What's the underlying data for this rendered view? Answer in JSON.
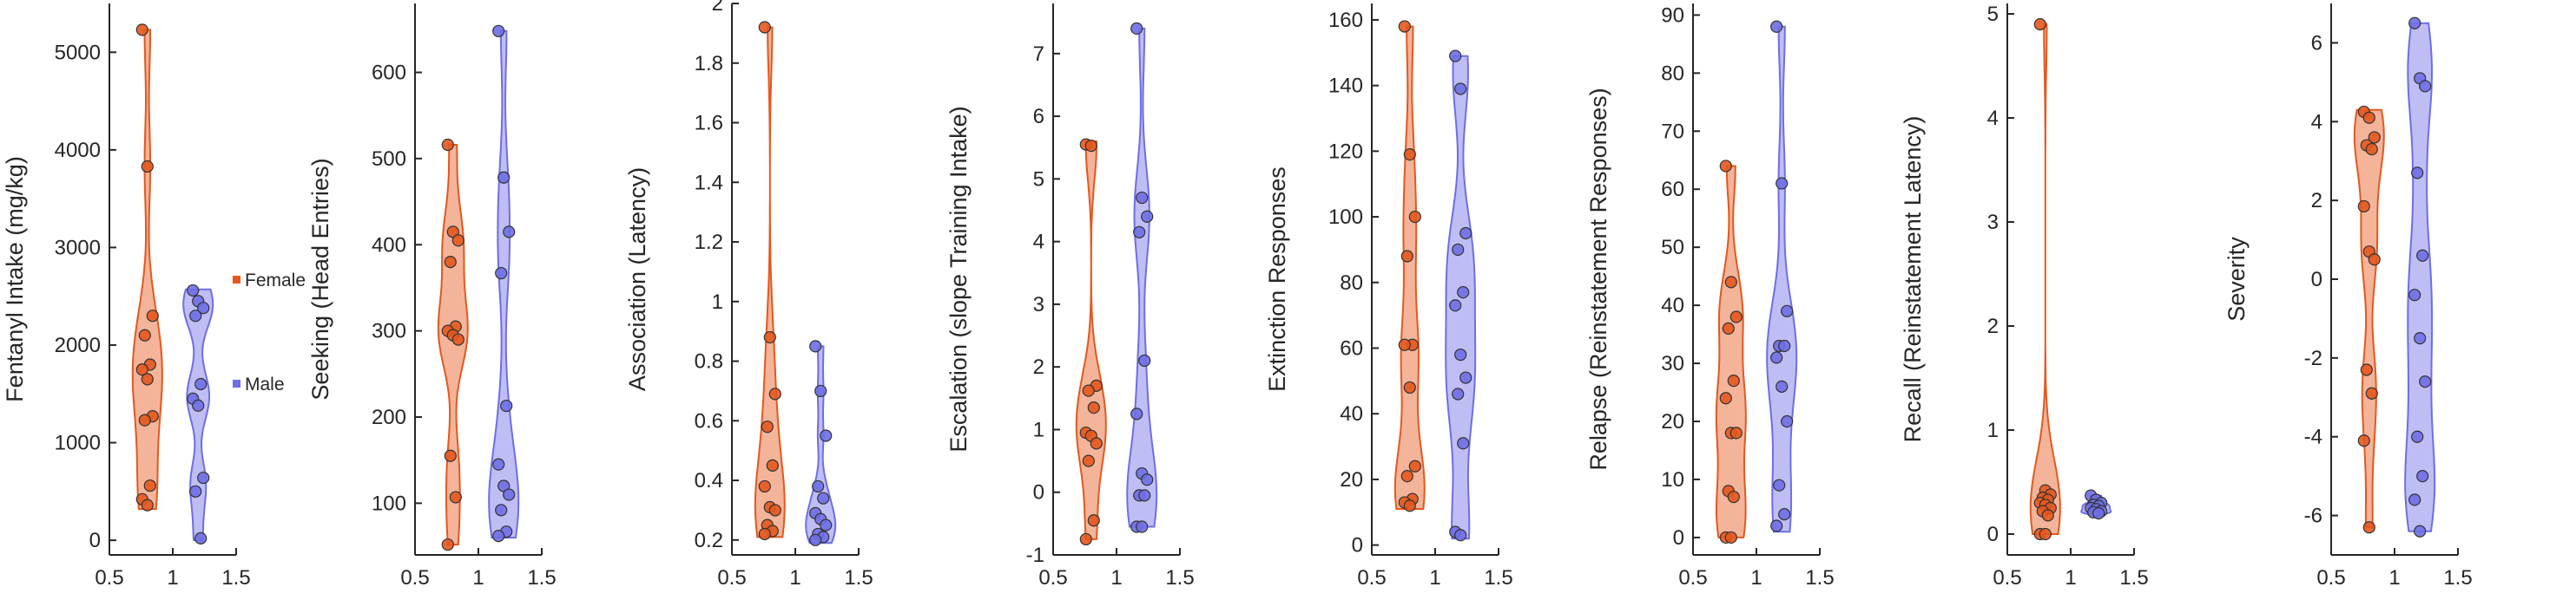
{
  "colors": {
    "female": "#E4581E",
    "male": "#6E6EE6",
    "axis": "#262626"
  },
  "legend": [
    {
      "label": "Female",
      "color": "#E4581E"
    },
    {
      "label": "Male",
      "color": "#6E6EE6"
    }
  ],
  "chart_data": [
    {
      "type": "violin",
      "ylabel": "Fentanyl Intake (mg/kg)",
      "xlim": [
        0.5,
        1.5
      ],
      "ylim": [
        -150,
        5500
      ],
      "xticks": [
        0.5,
        1,
        1.5
      ],
      "yticks": [
        0,
        1000,
        2000,
        3000,
        4000,
        5000
      ],
      "series": [
        {
          "name": "Female",
          "x": 0.8,
          "range": [
            320,
            5230
          ],
          "points": [
            5230,
            3830,
            2300,
            2100,
            1800,
            1750,
            1650,
            1270,
            1230,
            560,
            420,
            360
          ]
        },
        {
          "name": "Male",
          "x": 1.2,
          "range": [
            0,
            2570
          ],
          "points": [
            2560,
            2450,
            2380,
            2300,
            1600,
            1450,
            1380,
            640,
            500,
            20
          ]
        }
      ]
    },
    {
      "type": "violin",
      "ylabel": "Seeking (Head Entries)",
      "xlim": [
        0.5,
        1.5
      ],
      "ylim": [
        40,
        680
      ],
      "xticks": [
        0.5,
        1,
        1.5
      ],
      "yticks": [
        100,
        200,
        300,
        400,
        500,
        600
      ],
      "series": [
        {
          "name": "Female",
          "x": 0.8,
          "range": [
            52,
            516
          ],
          "points": [
            516,
            415,
            405,
            380,
            305,
            300,
            295,
            290,
            155,
            107,
            52
          ]
        },
        {
          "name": "Male",
          "x": 1.2,
          "range": [
            60,
            648
          ],
          "points": [
            648,
            478,
            415,
            367,
            213,
            145,
            120,
            110,
            92,
            67,
            62
          ]
        }
      ]
    },
    {
      "type": "violin",
      "ylabel": "Association (Latency)",
      "xlim": [
        0.5,
        1.5
      ],
      "ylim": [
        0.15,
        2.0
      ],
      "xticks": [
        0.5,
        1,
        1.5
      ],
      "yticks": [
        0.2,
        0.4,
        0.6,
        0.8,
        1.0,
        1.2,
        1.4,
        1.6,
        1.8,
        2.0
      ],
      "series": [
        {
          "name": "Female",
          "x": 0.8,
          "range": [
            0.21,
            1.92
          ],
          "points": [
            1.92,
            0.88,
            0.69,
            0.58,
            0.45,
            0.38,
            0.31,
            0.3,
            0.25,
            0.23,
            0.22
          ]
        },
        {
          "name": "Male",
          "x": 1.2,
          "range": [
            0.19,
            0.85
          ],
          "points": [
            0.85,
            0.7,
            0.55,
            0.38,
            0.34,
            0.29,
            0.27,
            0.25,
            0.22,
            0.21,
            0.2
          ]
        }
      ]
    },
    {
      "type": "violin",
      "ylabel": "Escalation (slope Training Intake)",
      "xlim": [
        0.5,
        1.5
      ],
      "ylim": [
        -1.0,
        7.8
      ],
      "xticks": [
        0.5,
        1,
        1.5
      ],
      "yticks": [
        -1,
        0,
        1,
        2,
        3,
        4,
        5,
        6,
        7
      ],
      "series": [
        {
          "name": "Female",
          "x": 0.8,
          "range": [
            -0.75,
            5.6
          ],
          "points": [
            5.55,
            5.53,
            1.7,
            1.62,
            1.35,
            0.95,
            0.9,
            0.78,
            0.5,
            -0.45,
            -0.75
          ]
        },
        {
          "name": "Male",
          "x": 1.2,
          "range": [
            -0.55,
            7.4
          ],
          "points": [
            7.4,
            4.7,
            4.4,
            4.15,
            2.1,
            1.25,
            0.3,
            0.2,
            -0.05,
            -0.05,
            -0.55,
            -0.55
          ]
        }
      ]
    },
    {
      "type": "violin",
      "ylabel": "Extinction Responses",
      "xlim": [
        0.5,
        1.5
      ],
      "ylim": [
        -3,
        165
      ],
      "xticks": [
        0.5,
        1,
        1.5
      ],
      "yticks": [
        0,
        20,
        40,
        60,
        80,
        100,
        120,
        140,
        160
      ],
      "series": [
        {
          "name": "Female",
          "x": 0.8,
          "range": [
            11,
            158
          ],
          "points": [
            158,
            119,
            100,
            88,
            61,
            61,
            48,
            24,
            21,
            14,
            13,
            12
          ]
        },
        {
          "name": "Male",
          "x": 1.2,
          "range": [
            2,
            149
          ],
          "points": [
            149,
            139,
            95,
            90,
            77,
            73,
            58,
            51,
            46,
            31,
            4,
            3
          ]
        }
      ]
    },
    {
      "type": "violin",
      "ylabel": "Relapse (Reinstatement Responses)",
      "xlim": [
        0.5,
        1.5
      ],
      "ylim": [
        -3,
        92
      ],
      "xticks": [
        0.5,
        1,
        1.5
      ],
      "yticks": [
        0,
        10,
        20,
        30,
        40,
        50,
        60,
        70,
        80,
        90
      ],
      "series": [
        {
          "name": "Female",
          "x": 0.8,
          "range": [
            0,
            64
          ],
          "points": [
            64,
            44,
            38,
            36,
            27,
            24,
            18,
            18,
            8,
            7,
            0,
            0
          ]
        },
        {
          "name": "Male",
          "x": 1.2,
          "range": [
            1,
            88
          ],
          "points": [
            88,
            61,
            39,
            33,
            33,
            31,
            26,
            20,
            9,
            4,
            2
          ]
        }
      ]
    },
    {
      "type": "violin",
      "ylabel": "Recall (Reinstatement Latency)",
      "xlim": [
        0.5,
        1.5
      ],
      "ylim": [
        -0.2,
        5.1
      ],
      "xticks": [
        0.5,
        1,
        1.5
      ],
      "yticks": [
        0,
        1,
        2,
        3,
        4,
        5
      ],
      "series": [
        {
          "name": "Female",
          "x": 0.8,
          "range": [
            0,
            4.9
          ],
          "points": [
            4.9,
            0.42,
            0.38,
            0.35,
            0.33,
            0.3,
            0.28,
            0.25,
            0.22,
            0.18,
            0.0,
            0.0
          ]
        },
        {
          "name": "Male",
          "x": 1.2,
          "range": [
            0.18,
            0.37
          ],
          "points": [
            0.37,
            0.33,
            0.3,
            0.28,
            0.27,
            0.25,
            0.24,
            0.22,
            0.21,
            0.2
          ]
        }
      ]
    },
    {
      "type": "violin",
      "ylabel": "Severity",
      "xlim": [
        0.5,
        1.5
      ],
      "ylim": [
        -7,
        7
      ],
      "xticks": [
        0.5,
        1,
        1.5
      ],
      "yticks": [
        -6,
        -4,
        -2,
        0,
        2,
        4,
        6
      ],
      "series": [
        {
          "name": "Female",
          "x": 0.8,
          "range": [
            -6.3,
            4.3
          ],
          "points": [
            4.25,
            4.1,
            3.6,
            3.4,
            3.3,
            1.85,
            0.7,
            0.5,
            -2.3,
            -2.9,
            -4.1,
            -6.3
          ]
        },
        {
          "name": "Male",
          "x": 1.2,
          "range": [
            -6.4,
            6.5
          ],
          "points": [
            6.5,
            5.1,
            4.9,
            2.7,
            0.6,
            -0.4,
            -1.5,
            -2.6,
            -4.0,
            -5.0,
            -5.6,
            -6.4
          ]
        }
      ]
    }
  ]
}
